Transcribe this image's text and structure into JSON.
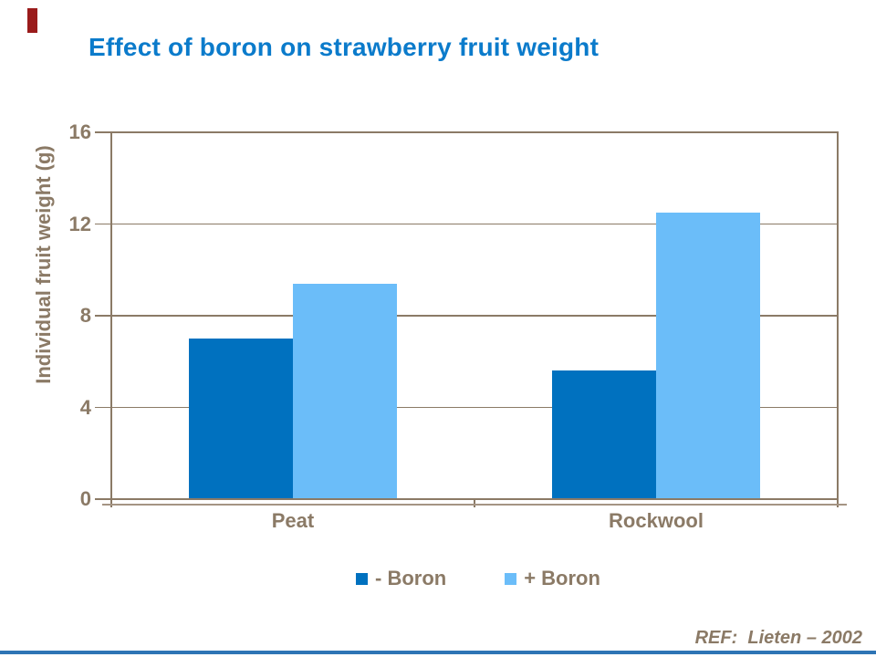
{
  "slide": {
    "title": "Effect of boron on strawberry fruit weight",
    "reference": "REF:  Lieten – 2002"
  },
  "colors": {
    "title_blue": "#0B7BCB",
    "axis_brown": "#8B7A66",
    "gridline_brown": "#8B7A66",
    "axis_shadow": "#A49483",
    "series_minus_boron": "#0071BF",
    "series_plus_boron": "#6BBDF9",
    "accent_red": "#9A1B1B",
    "bottom_rule_blue": "#2E74B5"
  },
  "chart_data": {
    "type": "bar",
    "title": "Effect of boron on strawberry fruit weight",
    "categories": [
      "Peat",
      "Rockwool"
    ],
    "series": [
      {
        "name": "- Boron",
        "color": "#0071BF",
        "values": [
          7.0,
          5.6
        ]
      },
      {
        "name": "+ Boron",
        "color": "#6BBDF9",
        "values": [
          9.4,
          12.5
        ]
      }
    ],
    "xlabel": "",
    "ylabel": "Individual fruit weight (g)",
    "ylim": [
      0,
      16
    ],
    "yticks": [
      0,
      4,
      8,
      12,
      16
    ],
    "grid": "horizontal",
    "legend_position": "bottom"
  }
}
